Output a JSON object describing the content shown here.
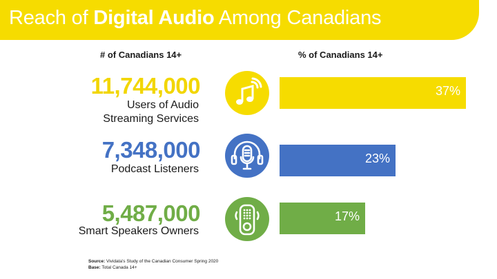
{
  "header": {
    "title_pre": "Reach of ",
    "title_bold": "Digital Audio",
    "title_post": " Among Canadians"
  },
  "columns": {
    "left": "# of Canadians 14+",
    "right": "% of Canadians 14+"
  },
  "rows": [
    {
      "count": "11,744,000",
      "label_line1": "Users of Audio",
      "label_line2": "Streaming Services",
      "pct_label": "37%",
      "color": "#f6dc00",
      "icon": "music-note-icon"
    },
    {
      "count": "7,348,000",
      "label_line1": "Podcast Listeners",
      "label_line2": "",
      "pct_label": "23%",
      "color": "#4472c4",
      "icon": "podcast-microphone-icon"
    },
    {
      "count": "5,487,000",
      "label_line1": "Smart Speakers Owners",
      "label_line2": "",
      "pct_label": "17%",
      "color": "#70ad47",
      "icon": "smart-speaker-icon"
    }
  ],
  "chart_data": {
    "type": "bar",
    "orientation": "horizontal",
    "title": "Reach of Digital Audio Among Canadians",
    "xlabel": "% of Canadians 14+",
    "categories": [
      "Users of Audio Streaming Services",
      "Podcast Listeners",
      "Smart Speakers Owners"
    ],
    "values": [
      37,
      23,
      17
    ],
    "counts": [
      11744000,
      7348000,
      5487000
    ],
    "colors": [
      "#f6dc00",
      "#4472c4",
      "#70ad47"
    ],
    "xlim": [
      0,
      37
    ],
    "grid": false
  },
  "footer": {
    "source_label": "Source:",
    "source_text": " Vividata's Study of the Canadian Consumer Spring 2020",
    "base_label": "Base:",
    "base_text": " Total Canada 14+"
  }
}
